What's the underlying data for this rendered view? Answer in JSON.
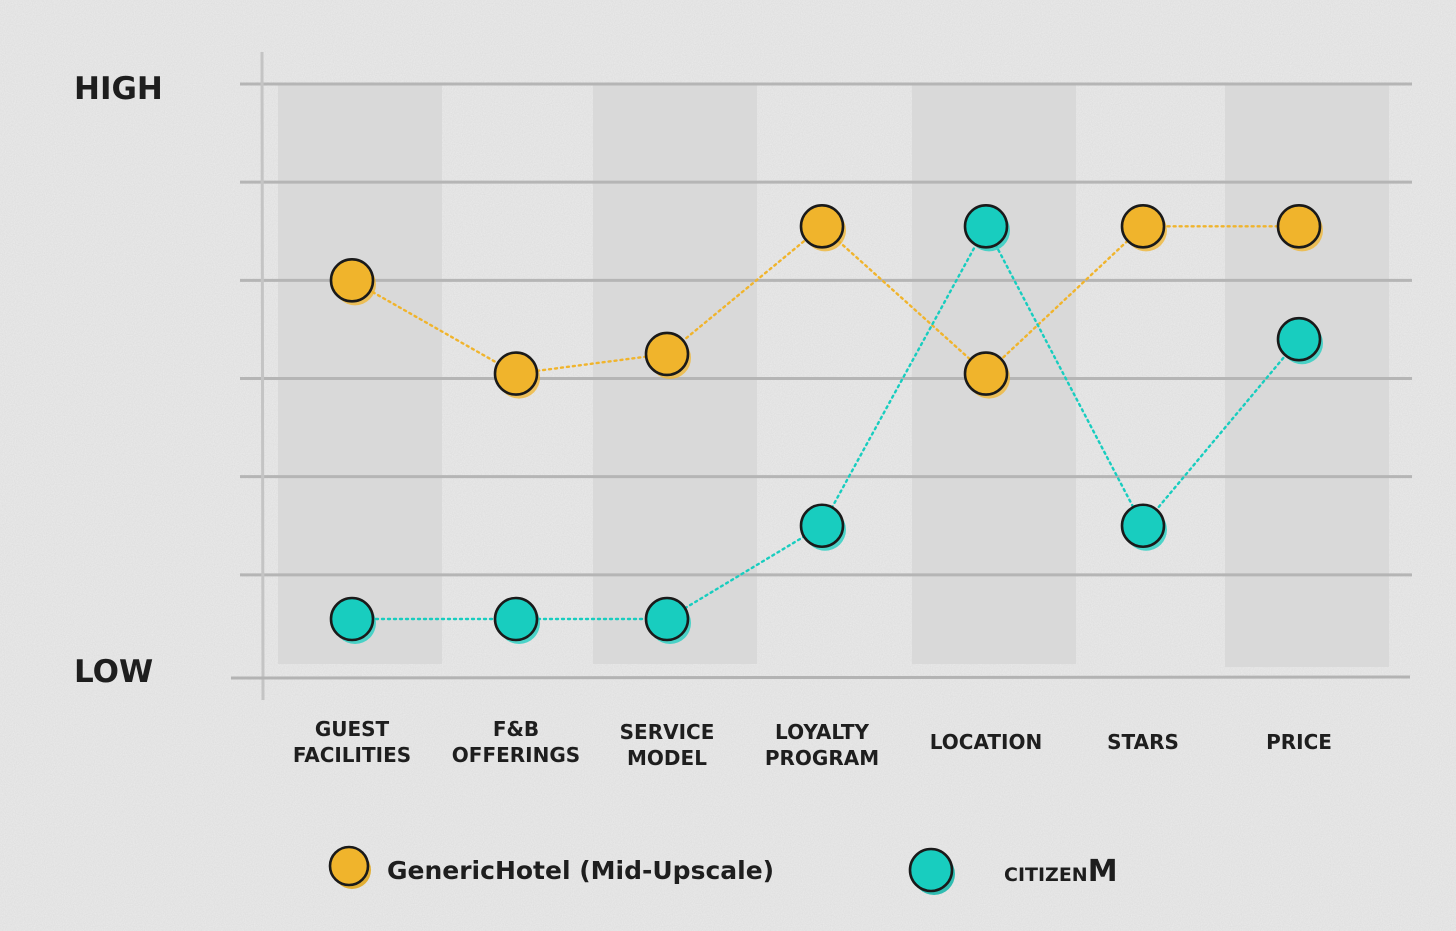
{
  "chart_data": {
    "type": "line",
    "y_high_label": "HIGH",
    "y_low_label": "LOW",
    "ylim": [
      0,
      6
    ],
    "grid": true,
    "legend_position": "bottom",
    "categories": [
      [
        "GUEST",
        "FACILITIES"
      ],
      [
        "F&B",
        "OFFERINGS"
      ],
      [
        "SERVICE",
        "MODEL"
      ],
      [
        "LOYALTY",
        "PROGRAM"
      ],
      [
        "LOCATION"
      ],
      [
        "STARS"
      ],
      [
        "PRICE"
      ]
    ],
    "series": [
      {
        "name": "GenericHotel (Mid-Upscale)",
        "color": "#f0b42c",
        "values": [
          4.0,
          3.05,
          3.25,
          4.55,
          3.05,
          4.55,
          4.55
        ]
      },
      {
        "name_prefix": "CITIZEN",
        "name_suffix": "M",
        "color": "#18cdbf",
        "values": [
          0.55,
          0.55,
          0.55,
          1.5,
          4.55,
          1.5,
          3.4
        ]
      }
    ]
  }
}
